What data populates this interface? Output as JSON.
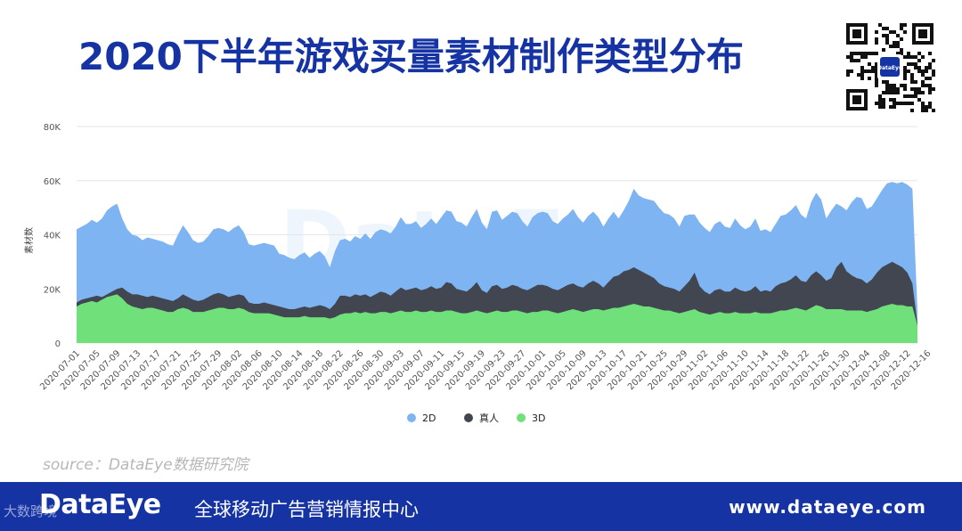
{
  "header": {
    "title": "2020下半年游戏买量素材制作类型分布"
  },
  "watermark": "DataEye",
  "qr_label": "DataEye",
  "source": "source：DataEye数据研究院",
  "footer": {
    "logo": "DataEye",
    "tagline": "全球移动广告营销情报中心",
    "url": "www.dataeye.com",
    "corner_watermark": "大数跨境"
  },
  "colors": {
    "brand": "#1633a3",
    "series_2d": "#7eb4f2",
    "series_real": "#424650",
    "series_3d": "#6fe07a"
  },
  "chart_data": {
    "type": "area",
    "title": "",
    "xlabel": "",
    "ylabel": "素材数",
    "ylim": [
      0,
      80000
    ],
    "yticks": [
      0,
      20000,
      40000,
      60000,
      80000
    ],
    "ytick_labels": [
      "0",
      "20K",
      "40K",
      "60K",
      "80K"
    ],
    "grid": true,
    "legend_position": "bottom-center",
    "start_date": "2020-07-01",
    "xtick_labels": [
      "2020-07-01",
      "2020-07-05",
      "2020-07-09",
      "2020-07-13",
      "2020-07-17",
      "2020-07-21",
      "2020-07-25",
      "2020-07-29",
      "2020-08-02",
      "2020-08-06",
      "2020-08-10",
      "2020-08-14",
      "2020-08-18",
      "2020-08-22",
      "2020-08-26",
      "2020-08-30",
      "2020-09-03",
      "2020-09-07",
      "2020-09-11",
      "2020-09-15",
      "2020-09-19",
      "2020-09-23",
      "2020-09-27",
      "2020-10-01",
      "2020-10-05",
      "2020-10-09",
      "2020-10-13",
      "2020-10-17",
      "2020-10-21",
      "2020-10-25",
      "2020-10-29",
      "2020-11-02",
      "2020-11-06",
      "2020-11-10",
      "2020-11-14",
      "2020-11-18",
      "2020-11-22",
      "2020-11-26",
      "2020-11-30",
      "2020-12-04",
      "2020-12-08",
      "2020-12-12",
      "2020-12-16"
    ],
    "series": [
      {
        "name": "2D",
        "color": "#7eb4f2",
        "values": [
          42000,
          43000,
          44000,
          45500,
          44500,
          46000,
          49000,
          50500,
          51500,
          46000,
          42000,
          40000,
          39500,
          38000,
          39000,
          38500,
          38000,
          37500,
          36500,
          36000,
          40000,
          43500,
          41000,
          38000,
          37000,
          37500,
          39500,
          42000,
          42500,
          42000,
          41000,
          42500,
          43500,
          41000,
          36500,
          36000,
          36500,
          37000,
          36500,
          36000,
          33000,
          32500,
          31500,
          31000,
          32500,
          33500,
          31500,
          33000,
          34000,
          32000,
          28000,
          34000,
          38000,
          38500,
          37500,
          39500,
          38500,
          40500,
          38500,
          41000,
          42000,
          41500,
          40500,
          43000,
          46500,
          44000,
          44000,
          45000,
          42500,
          44000,
          46000,
          44000,
          46500,
          49000,
          48500,
          45000,
          44500,
          43000,
          46500,
          49500,
          44500,
          42000,
          48500,
          49000,
          45500,
          47000,
          48500,
          48000,
          45000,
          43000,
          46500,
          48000,
          48500,
          48000,
          45000,
          44000,
          46000,
          47500,
          49500,
          46500,
          44500,
          47000,
          48500,
          46500,
          43000,
          46000,
          48500,
          46000,
          49000,
          52500,
          57000,
          54500,
          53500,
          53000,
          52500,
          50000,
          48000,
          47500,
          46000,
          43000,
          47000,
          47500,
          47500,
          44500,
          42500,
          41000,
          44000,
          45000,
          43000,
          42500,
          46000,
          43500,
          42000,
          43000,
          46000,
          41500,
          42000,
          41000,
          44000,
          47000,
          47500,
          49000,
          51000,
          47500,
          46000,
          52000,
          55500,
          53000,
          46000,
          49000,
          51500,
          50500,
          49000,
          52000,
          54000,
          53500,
          49500,
          50500,
          53500,
          56500,
          59000,
          59500,
          59000,
          59500,
          58500,
          57000,
          12000
        ]
      },
      {
        "name": "真人",
        "color": "#424650",
        "values": [
          15000,
          16000,
          16500,
          17000,
          17500,
          17000,
          18000,
          19000,
          20000,
          20500,
          19000,
          18000,
          18000,
          17500,
          17000,
          17500,
          17000,
          16500,
          16000,
          15500,
          16500,
          18000,
          17000,
          16000,
          15500,
          16000,
          17000,
          18000,
          18500,
          18000,
          17000,
          17500,
          18000,
          17500,
          15000,
          14500,
          14500,
          15000,
          14500,
          14000,
          13500,
          13000,
          12500,
          12500,
          13000,
          13500,
          13000,
          13500,
          14000,
          13500,
          12500,
          14500,
          17500,
          17500,
          17000,
          18000,
          17500,
          18000,
          17000,
          18000,
          19000,
          18500,
          17500,
          19000,
          20500,
          19500,
          20000,
          20500,
          19500,
          20000,
          21000,
          20000,
          20500,
          22500,
          22000,
          20000,
          19500,
          19000,
          20500,
          22500,
          19500,
          18500,
          21000,
          21500,
          20000,
          20500,
          21500,
          21000,
          20000,
          19500,
          20500,
          21500,
          21500,
          21000,
          20000,
          19500,
          20500,
          21500,
          22000,
          21000,
          20500,
          22000,
          23000,
          22000,
          20500,
          22500,
          24500,
          25000,
          26500,
          27000,
          28000,
          27000,
          26000,
          25000,
          24000,
          22000,
          21000,
          20500,
          20000,
          19000,
          21000,
          23000,
          26000,
          21000,
          19000,
          18000,
          19500,
          20000,
          19000,
          19000,
          20500,
          19500,
          19000,
          19500,
          21000,
          19000,
          19500,
          19000,
          21000,
          22000,
          22500,
          23500,
          25000,
          23000,
          22500,
          25000,
          26500,
          25000,
          23000,
          24000,
          28000,
          30000,
          26500,
          25000,
          24000,
          23500,
          22000,
          23500,
          26000,
          28000,
          29000,
          30000,
          29000,
          28000,
          26000,
          22000,
          7000
        ]
      },
      {
        "name": "3D",
        "color": "#6fe07a",
        "values": [
          13500,
          14500,
          15000,
          15500,
          15000,
          16000,
          17000,
          17500,
          18000,
          16500,
          14500,
          13500,
          13000,
          12500,
          13000,
          13000,
          12500,
          12000,
          11500,
          11500,
          12500,
          13000,
          12500,
          11500,
          11500,
          11500,
          12000,
          12500,
          13000,
          13000,
          12500,
          12500,
          13000,
          12500,
          11500,
          11000,
          11000,
          11000,
          11000,
          10500,
          10000,
          9500,
          9500,
          9500,
          9500,
          10000,
          9500,
          9500,
          9500,
          9500,
          9000,
          9500,
          10500,
          11000,
          11000,
          11500,
          11000,
          11500,
          11000,
          11000,
          11500,
          11500,
          11000,
          11500,
          12000,
          11500,
          11500,
          12000,
          11500,
          11500,
          12000,
          11500,
          11500,
          12000,
          12000,
          11500,
          11000,
          11000,
          11500,
          12000,
          11500,
          11000,
          11500,
          12000,
          11500,
          11500,
          12000,
          12000,
          11500,
          11000,
          11500,
          11500,
          12000,
          12000,
          11500,
          11000,
          11500,
          12000,
          12500,
          12000,
          11500,
          12000,
          12500,
          12500,
          12000,
          12500,
          13000,
          13000,
          13500,
          14000,
          14500,
          14000,
          13500,
          13500,
          13000,
          12500,
          12000,
          12000,
          11500,
          11000,
          11500,
          12000,
          12500,
          11500,
          11000,
          10500,
          11000,
          11500,
          11000,
          11000,
          11500,
          11000,
          11000,
          11000,
          11500,
          11000,
          11000,
          11000,
          11500,
          12000,
          12000,
          12500,
          13000,
          12500,
          12000,
          13000,
          14000,
          13500,
          12500,
          12500,
          12500,
          12500,
          12000,
          12000,
          12000,
          12000,
          11500,
          12000,
          12500,
          13500,
          14000,
          14500,
          14000,
          14000,
          13500,
          13500,
          6500
        ]
      }
    ]
  }
}
